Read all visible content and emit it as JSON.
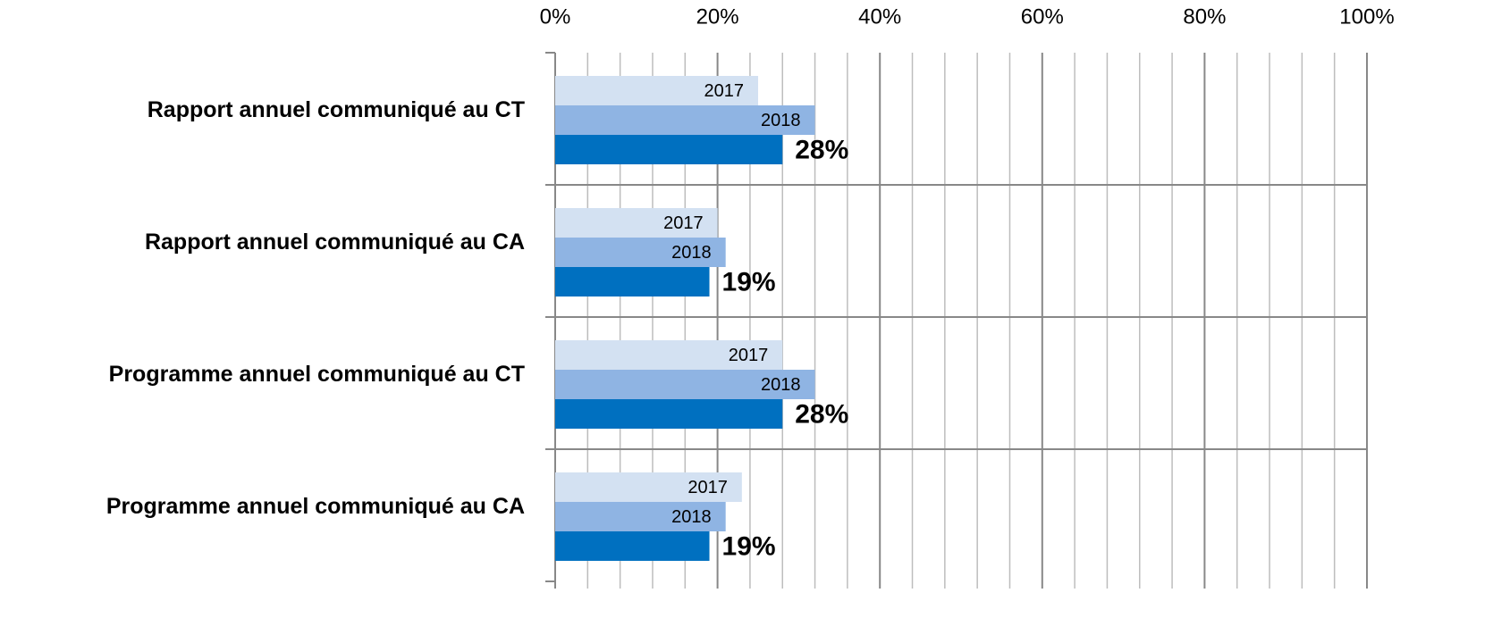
{
  "chart_data": {
    "type": "bar",
    "orientation": "horizontal",
    "categories": [
      "Rapport annuel  communiqué au CT",
      "Rapport annuel  communiqué au CA",
      "Programme annuel  communiqué au CT",
      "Programme annuel  communiqué au CA"
    ],
    "series": [
      {
        "name": "2017",
        "color": "#d3e1f2",
        "values": [
          25,
          20,
          28,
          23
        ]
      },
      {
        "name": "2018",
        "color": "#8fb4e3",
        "values": [
          32,
          21,
          32,
          21
        ]
      },
      {
        "color": "#0070c0",
        "values": [
          28,
          19,
          28,
          19
        ],
        "value_labels": [
          "28%",
          "19%",
          "28%",
          "19%"
        ]
      }
    ],
    "xlim": [
      0,
      100
    ],
    "xticks": [
      {
        "value": 0,
        "label": "0%"
      },
      {
        "value": 20,
        "label": "20%"
      },
      {
        "value": 40,
        "label": "40%"
      },
      {
        "value": 60,
        "label": "60%"
      },
      {
        "value": 80,
        "label": "80%"
      },
      {
        "value": 100,
        "label": "100%"
      }
    ],
    "minor_xticks": [
      4,
      8,
      12,
      16,
      24,
      28,
      32,
      36,
      44,
      48,
      52,
      56,
      64,
      68,
      72,
      76,
      84,
      88,
      92,
      96
    ],
    "grid": true
  }
}
